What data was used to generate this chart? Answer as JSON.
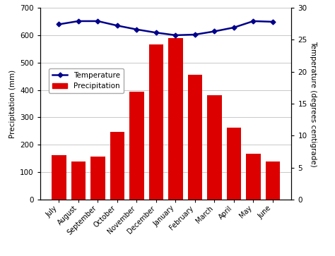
{
  "months": [
    "July",
    "August",
    "September",
    "October",
    "November",
    "December",
    "January",
    "February",
    "March",
    "April",
    "May",
    "June"
  ],
  "precipitation": [
    163,
    140,
    157,
    248,
    395,
    565,
    588,
    455,
    380,
    262,
    168,
    140
  ],
  "temperature_deg": [
    27.4,
    27.9,
    27.9,
    27.2,
    26.6,
    26.1,
    25.7,
    25.8,
    26.3,
    26.9,
    27.9,
    27.8
  ],
  "bar_color": "#dd0000",
  "line_color": "#00008B",
  "marker_color": "#00008B",
  "ylabel_left": "Precipitation (mm)",
  "ylabel_right": "Temperature (degrees centigrade)",
  "ylim_left": [
    0,
    700
  ],
  "ylim_right": [
    0,
    30
  ],
  "yticks_left": [
    0,
    100,
    200,
    300,
    400,
    500,
    600,
    700
  ],
  "yticks_right": [
    0,
    5,
    10,
    15,
    20,
    25,
    30
  ],
  "legend_temp": "Temperature",
  "legend_precip": "Precipitation",
  "background_color": "#ffffff",
  "grid_color": "#c8c8c8"
}
